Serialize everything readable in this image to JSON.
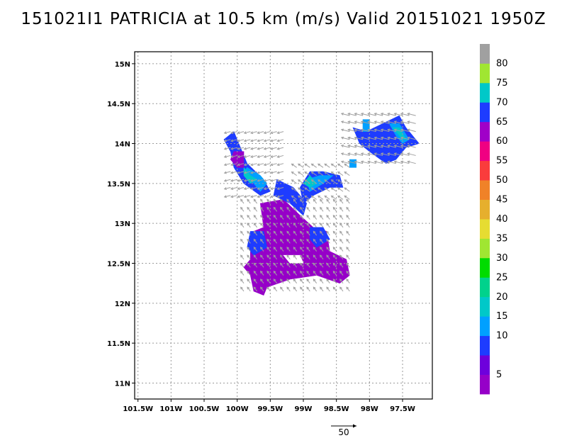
{
  "title": "151021I1 PATRICIA at 10.5 km (m/s) Valid 20151021 1950Z",
  "map": {
    "lon_range": [
      -101.55,
      -97.05
    ],
    "lat_range": [
      10.8,
      15.15
    ],
    "lon_ticks": [
      {
        "value": -101.5,
        "label": "101.5W"
      },
      {
        "value": -101.0,
        "label": "101W"
      },
      {
        "value": -100.5,
        "label": "100.5W"
      },
      {
        "value": -100.0,
        "label": "100W"
      },
      {
        "value": -99.5,
        "label": "99.5W"
      },
      {
        "value": -99.0,
        "label": "99W"
      },
      {
        "value": -98.5,
        "label": "98.5W"
      },
      {
        "value": -98.0,
        "label": "98W"
      },
      {
        "value": -97.5,
        "label": "97.5W"
      }
    ],
    "lat_ticks": [
      {
        "value": 15.0,
        "label": "15N"
      },
      {
        "value": 14.5,
        "label": "14.5N"
      },
      {
        "value": 14.0,
        "label": "14N"
      },
      {
        "value": 13.5,
        "label": "13.5N"
      },
      {
        "value": 13.0,
        "label": "13N"
      },
      {
        "value": 12.5,
        "label": "12.5N"
      },
      {
        "value": 12.0,
        "label": "12N"
      },
      {
        "value": 11.5,
        "label": "11.5N"
      },
      {
        "value": 11.0,
        "label": "11N"
      }
    ],
    "grid": true,
    "grid_style": "dotted",
    "vector_color": "#a0a0a0",
    "reference_vector": {
      "label": "50",
      "value_ms": 50
    }
  },
  "colorbar": {
    "levels": [
      {
        "color": "#9600c8",
        "label": "5"
      },
      {
        "color": "#6e00dc",
        "label": ""
      },
      {
        "color": "#1e3cff",
        "label": "10"
      },
      {
        "color": "#00a0ff",
        "label": "15"
      },
      {
        "color": "#00c8c8",
        "label": "20"
      },
      {
        "color": "#00d28c",
        "label": "25"
      },
      {
        "color": "#00dc00",
        "label": "30"
      },
      {
        "color": "#a0e632",
        "label": "35"
      },
      {
        "color": "#e6dc32",
        "label": "40"
      },
      {
        "color": "#e6af2d",
        "label": "45"
      },
      {
        "color": "#f08228",
        "label": "50"
      },
      {
        "color": "#fa3c3c",
        "label": "55"
      },
      {
        "color": "#f00082",
        "label": "60"
      },
      {
        "color": "#a000c8",
        "label": "65"
      },
      {
        "color": "#1e3cff",
        "label": "70"
      },
      {
        "color": "#00c8c8",
        "label": "75"
      },
      {
        "color": "#a0e632",
        "label": "80"
      },
      {
        "color": "#a0a0a0",
        "label": ""
      }
    ]
  },
  "wind_field": {
    "cell_deg": 0.05,
    "regions": [
      {
        "name": "central-mass",
        "color": "#9600c8",
        "polygon": [
          [
            -99.65,
            13.25
          ],
          [
            -99.3,
            13.3
          ],
          [
            -99.05,
            13.1
          ],
          [
            -98.85,
            12.95
          ],
          [
            -98.65,
            12.9
          ],
          [
            -98.6,
            12.65
          ],
          [
            -98.35,
            12.55
          ],
          [
            -98.3,
            12.35
          ],
          [
            -98.45,
            12.25
          ],
          [
            -98.8,
            12.35
          ],
          [
            -99.2,
            12.3
          ],
          [
            -99.55,
            12.2
          ],
          [
            -99.6,
            12.12
          ],
          [
            -99.75,
            12.15
          ],
          [
            -99.8,
            12.35
          ],
          [
            -99.92,
            12.45
          ],
          [
            -99.8,
            12.55
          ],
          [
            -99.8,
            12.75
          ],
          [
            -99.75,
            12.9
          ],
          [
            -99.6,
            12.95
          ]
        ]
      },
      {
        "name": "central-hole",
        "color": "#ffffff",
        "polygon": [
          [
            -99.3,
            12.62
          ],
          [
            -99.05,
            12.6
          ],
          [
            -98.98,
            12.52
          ],
          [
            -99.22,
            12.52
          ]
        ]
      },
      {
        "name": "west-lobe-blue",
        "color": "#1e3cff",
        "polygon": [
          [
            -99.82,
            12.9
          ],
          [
            -99.6,
            12.9
          ],
          [
            -99.55,
            12.7
          ],
          [
            -99.75,
            12.6
          ],
          [
            -99.85,
            12.7
          ]
        ]
      },
      {
        "name": "east-lobe-blue",
        "color": "#1e3cff",
        "polygon": [
          [
            -98.9,
            12.95
          ],
          [
            -98.7,
            12.95
          ],
          [
            -98.62,
            12.78
          ],
          [
            -98.8,
            12.7
          ],
          [
            -98.92,
            12.8
          ]
        ]
      },
      {
        "name": "upper-neck-blue",
        "color": "#1e3cff",
        "polygon": [
          [
            -99.4,
            13.55
          ],
          [
            -99.15,
            13.45
          ],
          [
            -98.95,
            13.25
          ],
          [
            -99.0,
            13.1
          ],
          [
            -99.2,
            13.25
          ],
          [
            -99.45,
            13.35
          ]
        ]
      },
      {
        "name": "upper-right-arm-blue",
        "color": "#1e3cff",
        "polygon": [
          [
            -99.05,
            13.45
          ],
          [
            -98.9,
            13.65
          ],
          [
            -98.7,
            13.65
          ],
          [
            -98.45,
            13.6
          ],
          [
            -98.4,
            13.45
          ],
          [
            -98.6,
            13.45
          ],
          [
            -98.85,
            13.35
          ],
          [
            -99.0,
            13.25
          ]
        ]
      },
      {
        "name": "upper-right-arm-cyan",
        "color": "#00a0ff",
        "polygon": [
          [
            -98.95,
            13.55
          ],
          [
            -98.75,
            13.62
          ],
          [
            -98.55,
            13.58
          ],
          [
            -98.7,
            13.48
          ],
          [
            -98.9,
            13.42
          ]
        ]
      },
      {
        "name": "upper-right-arm-teal",
        "color": "#00c8c8",
        "polygon": [
          [
            -98.98,
            13.52
          ],
          [
            -98.88,
            13.58
          ],
          [
            -98.82,
            13.5
          ],
          [
            -98.92,
            13.45
          ]
        ]
      },
      {
        "name": "left-arm-blue",
        "color": "#1e3cff",
        "polygon": [
          [
            -100.2,
            14.05
          ],
          [
            -100.05,
            14.15
          ],
          [
            -99.95,
            13.95
          ],
          [
            -99.85,
            13.75
          ],
          [
            -99.6,
            13.55
          ],
          [
            -99.5,
            13.4
          ],
          [
            -99.65,
            13.35
          ],
          [
            -99.9,
            13.5
          ],
          [
            -100.05,
            13.7
          ],
          [
            -100.1,
            13.9
          ]
        ]
      },
      {
        "name": "left-arm-cyan",
        "color": "#00a0ff",
        "polygon": [
          [
            -99.85,
            13.72
          ],
          [
            -99.65,
            13.58
          ],
          [
            -99.55,
            13.48
          ],
          [
            -99.65,
            13.42
          ],
          [
            -99.82,
            13.55
          ],
          [
            -99.9,
            13.65
          ]
        ]
      },
      {
        "name": "left-arm-teal",
        "color": "#00c8c8",
        "polygon": [
          [
            -99.88,
            13.68
          ],
          [
            -99.78,
            13.62
          ],
          [
            -99.72,
            13.55
          ],
          [
            -99.8,
            13.5
          ],
          [
            -99.9,
            13.6
          ]
        ]
      },
      {
        "name": "left-arm-purple",
        "color": "#9600c8",
        "polygon": [
          [
            -100.05,
            13.9
          ],
          [
            -99.92,
            13.88
          ],
          [
            -99.9,
            13.72
          ],
          [
            -100.0,
            13.68
          ],
          [
            -100.08,
            13.78
          ]
        ]
      },
      {
        "name": "right-blob-blue",
        "color": "#1e3cff",
        "polygon": [
          [
            -98.25,
            14.2
          ],
          [
            -98.05,
            14.15
          ],
          [
            -97.8,
            14.25
          ],
          [
            -97.55,
            14.35
          ],
          [
            -97.45,
            14.2
          ],
          [
            -97.25,
            14.0
          ],
          [
            -97.45,
            13.95
          ],
          [
            -97.6,
            13.82
          ],
          [
            -97.75,
            13.75
          ],
          [
            -98.0,
            13.9
          ],
          [
            -98.15,
            14.0
          ]
        ]
      },
      {
        "name": "right-blob-cyan-1",
        "color": "#00a0ff",
        "polygon": [
          [
            -98.1,
            14.3
          ],
          [
            -98.02,
            14.3
          ],
          [
            -97.98,
            14.15
          ],
          [
            -98.08,
            14.15
          ]
        ]
      },
      {
        "name": "right-blob-cyan-2",
        "color": "#00a0ff",
        "polygon": [
          [
            -97.72,
            14.25
          ],
          [
            -97.55,
            14.25
          ],
          [
            -97.4,
            14.05
          ],
          [
            -97.5,
            14.02
          ],
          [
            -97.62,
            14.12
          ]
        ]
      },
      {
        "name": "right-blob-teal",
        "color": "#00c8c8",
        "polygon": [
          [
            -97.65,
            14.18
          ],
          [
            -97.55,
            14.2
          ],
          [
            -97.45,
            14.05
          ],
          [
            -97.52,
            14.05
          ]
        ]
      },
      {
        "name": "isolated-cyan-cell",
        "color": "#00a0ff",
        "polygon": [
          [
            -98.28,
            13.8
          ],
          [
            -98.18,
            13.8
          ],
          [
            -98.18,
            13.7
          ],
          [
            -98.28,
            13.7
          ]
        ]
      }
    ],
    "vector_areas": [
      {
        "name": "central",
        "lon_range": [
          -99.9,
          -98.3
        ],
        "lat_range": [
          12.15,
          13.3
        ],
        "u": -6,
        "v": 8
      },
      {
        "name": "left-arm",
        "lon_range": [
          -100.1,
          -99.3
        ],
        "lat_range": [
          13.35,
          14.15
        ],
        "u": -12,
        "v": -3
      },
      {
        "name": "upper-right-arm",
        "lon_range": [
          -99.1,
          -98.3
        ],
        "lat_range": [
          13.3,
          13.75
        ],
        "u": -10,
        "v": 7
      },
      {
        "name": "right-blob",
        "lon_range": [
          -98.3,
          -97.3
        ],
        "lat_range": [
          13.75,
          14.35
        ],
        "u": -16,
        "v": 4
      }
    ]
  }
}
